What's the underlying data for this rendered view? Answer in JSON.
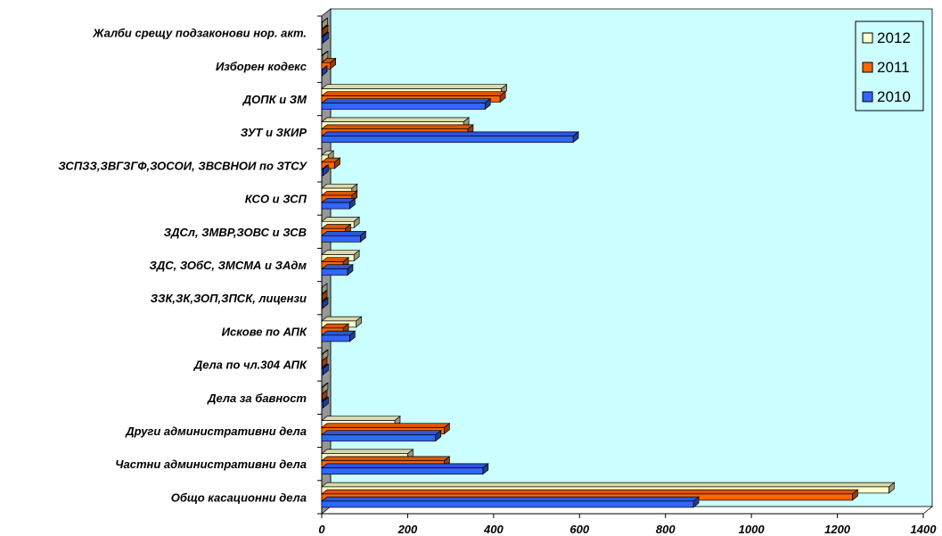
{
  "chart_data": {
    "type": "bar",
    "orientation": "horizontal",
    "style": "3d",
    "categories": [
      "Жалби срещу подзаконови нор. акт.",
      "Изборен кодекс",
      "ДОПК и ЗМ",
      "ЗУТ и ЗКИР",
      "ЗСПЗЗ,ЗВГЗГФ,ЗОСОИ, ЗВСВНОИ по ЗТСУ",
      "КСО и ЗСП",
      "ЗДСл, ЗМВР,ЗОВС и ЗСВ",
      "ЗДС, ЗОбС,  ЗМСМА и  ЗАдм",
      "ЗЗК,ЗК,ЗОП,ЗПСК,      лицензи",
      "Искове по АПК",
      "Дела по чл.304 АПК",
      "Дела за бавност",
      "Други административни дела",
      "Частни административни дела",
      "Общо  касационни дела"
    ],
    "series": [
      {
        "name": "2012",
        "color": "#FFFFCC",
        "values": [
          1,
          2,
          418,
          330,
          15,
          70,
          75,
          75,
          0,
          80,
          2,
          2,
          170,
          200,
          1320
        ]
      },
      {
        "name": "2011",
        "color": "#FF6600",
        "values": [
          2,
          20,
          415,
          340,
          30,
          70,
          55,
          50,
          0,
          50,
          0,
          0,
          285,
          285,
          1235
        ]
      },
      {
        "name": "2010",
        "color": "#3366FF",
        "values": [
          3,
          0,
          380,
          585,
          3,
          65,
          90,
          60,
          2,
          65,
          3,
          3,
          265,
          375,
          865
        ]
      }
    ],
    "xlim": [
      0,
      1400
    ],
    "xticks": [
      "0",
      "200",
      "400",
      "600",
      "800",
      "1000",
      "1200",
      "1400"
    ],
    "legend_position": "top-right",
    "background_color": "#CCFFFF",
    "wall_color": "#969696"
  }
}
